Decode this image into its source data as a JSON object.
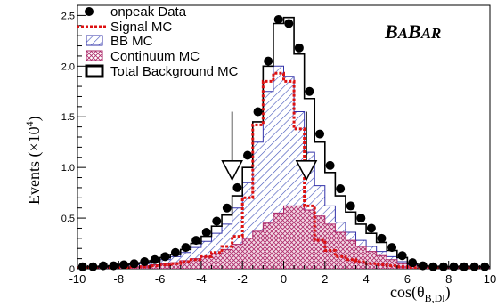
{
  "chart_data": {
    "type": "histogram",
    "ylabel": "Events (×10",
    "ylabel_exponent": "4",
    "ylabel_close": ")",
    "xlabel": "cos(θ",
    "xlabel_sub": "B,Dl",
    "xlabel_close": ")",
    "logo": "BABAR",
    "xlim": [
      -10,
      10
    ],
    "ylim": [
      0,
      2.6
    ],
    "y_scale_note": "values in units of 10^4 events",
    "x_ticks": [
      -10,
      -8,
      -6,
      -4,
      -2,
      0,
      2,
      4,
      6,
      8,
      10
    ],
    "x_tick_labels": [
      "-10",
      "-8",
      "-6",
      "-4",
      "-2",
      "0",
      "2",
      "4",
      "6",
      "8",
      "10"
    ],
    "y_ticks": [
      0,
      0.5,
      1.0,
      1.5,
      2.0,
      2.5
    ],
    "y_tick_labels": [
      "0",
      "0.5",
      "1.0",
      "1.5",
      "2.0",
      "2.5"
    ],
    "bin_edges": [
      -10,
      -9.5,
      -9,
      -8.5,
      -8,
      -7.5,
      -7,
      -6.5,
      -6,
      -5.5,
      -5,
      -4.5,
      -4,
      -3.5,
      -3,
      -2.5,
      -2,
      -1.5,
      -1,
      -0.5,
      0,
      0.5,
      1,
      1.5,
      2,
      2.5,
      3,
      3.5,
      4,
      4.5,
      5,
      5.5,
      6,
      6.5,
      7,
      7.5,
      8,
      8.5,
      9,
      9.5,
      10
    ],
    "legend": [
      {
        "label": "onpeak Data",
        "style": "marker"
      },
      {
        "label": "Signal MC",
        "style": "dotted-red"
      },
      {
        "label": "BB MC",
        "style": "blue-hatch"
      },
      {
        "label": "Continuum MC",
        "style": "pink-hatch"
      },
      {
        "label": "Total Background MC",
        "style": "black-line"
      }
    ],
    "series": [
      {
        "name": "onpeak Data",
        "color": "#000000",
        "x": [
          -9.75,
          -9.25,
          -8.75,
          -8.25,
          -7.75,
          -7.25,
          -6.75,
          -6.25,
          -5.75,
          -5.25,
          -4.75,
          -4.25,
          -3.75,
          -3.25,
          -2.75,
          -2.25,
          -1.75,
          -1.25,
          -0.75,
          -0.25,
          0.25,
          0.75,
          1.25,
          1.75,
          2.25,
          2.75,
          3.25,
          3.75,
          4.25,
          4.75,
          5.25,
          5.75,
          6.25,
          6.75,
          7.25,
          7.75,
          8.25,
          8.75,
          9.25,
          9.75
        ],
        "y": [
          0.02,
          0.02,
          0.03,
          0.03,
          0.04,
          0.05,
          0.07,
          0.09,
          0.12,
          0.16,
          0.21,
          0.28,
          0.36,
          0.47,
          0.6,
          0.8,
          1.12,
          1.55,
          2.05,
          2.46,
          2.42,
          2.18,
          1.75,
          1.33,
          1.02,
          0.79,
          0.62,
          0.5,
          0.4,
          0.3,
          0.21,
          0.13,
          0.06,
          0.03,
          0.02,
          0.02,
          0.02,
          0.02,
          0.02,
          0.02
        ]
      },
      {
        "name": "Total Background MC",
        "color": "#000000",
        "y": [
          0.01,
          0.02,
          0.02,
          0.03,
          0.04,
          0.05,
          0.06,
          0.08,
          0.11,
          0.14,
          0.19,
          0.25,
          0.32,
          0.42,
          0.53,
          0.72,
          1.0,
          1.45,
          2.0,
          2.42,
          2.48,
          2.12,
          1.68,
          1.25,
          0.95,
          0.72,
          0.56,
          0.44,
          0.35,
          0.26,
          0.18,
          0.11,
          0.05,
          0.03,
          0.02,
          0.02,
          0.02,
          0.02,
          0.02,
          0.02
        ]
      },
      {
        "name": "BB MC",
        "color": "#3333aa",
        "y": [
          0.01,
          0.01,
          0.02,
          0.02,
          0.03,
          0.04,
          0.05,
          0.07,
          0.09,
          0.12,
          0.16,
          0.21,
          0.27,
          0.35,
          0.44,
          0.6,
          0.85,
          1.25,
          1.75,
          2.0,
          1.9,
          1.55,
          1.15,
          0.82,
          0.62,
          0.46,
          0.36,
          0.28,
          0.22,
          0.17,
          0.12,
          0.07,
          0.04,
          0.02,
          0.01,
          0.01,
          0.01,
          0.01,
          0.01,
          0.01
        ]
      },
      {
        "name": "Continuum MC",
        "color": "#aa2266",
        "y": [
          0.01,
          0.01,
          0.01,
          0.01,
          0.02,
          0.02,
          0.03,
          0.04,
          0.05,
          0.06,
          0.08,
          0.1,
          0.12,
          0.15,
          0.19,
          0.24,
          0.3,
          0.37,
          0.45,
          0.55,
          0.62,
          0.62,
          0.58,
          0.52,
          0.44,
          0.36,
          0.28,
          0.22,
          0.17,
          0.13,
          0.09,
          0.05,
          0.03,
          0.02,
          0.01,
          0.01,
          0.01,
          0.01,
          0.01,
          0.01
        ]
      },
      {
        "name": "Signal MC",
        "color": "#dd1111",
        "y": [
          0.01,
          0.01,
          0.01,
          0.01,
          0.01,
          0.02,
          0.02,
          0.03,
          0.04,
          0.05,
          0.07,
          0.09,
          0.12,
          0.16,
          0.22,
          0.32,
          0.7,
          1.42,
          1.85,
          1.93,
          1.85,
          1.38,
          0.62,
          0.28,
          0.18,
          0.12,
          0.09,
          0.07,
          0.05,
          0.04,
          0.03,
          0.02,
          0.01,
          0.01,
          0.01,
          0.01,
          0.01,
          0.01,
          0.01,
          0.01
        ]
      }
    ],
    "cut_arrows": [
      -2.5,
      1.1
    ]
  }
}
